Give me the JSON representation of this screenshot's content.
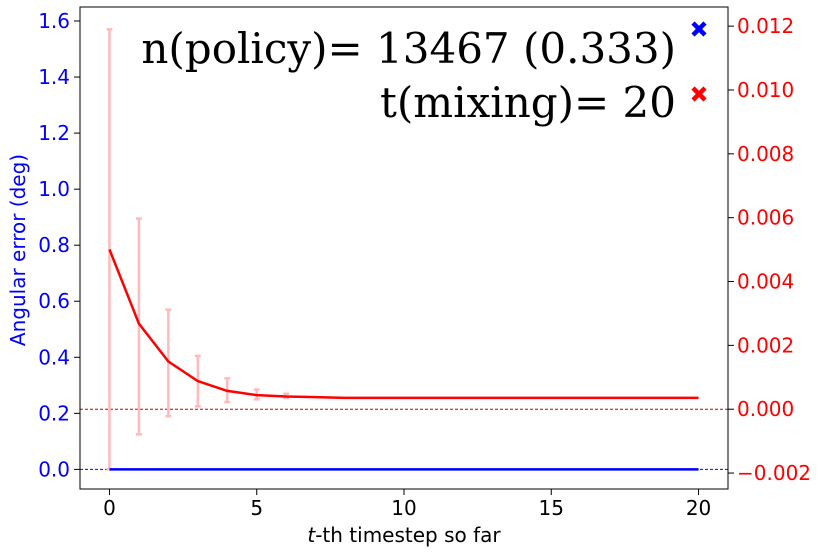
{
  "chart_data": {
    "type": "line",
    "xlabel": {
      "italic": "t",
      "rest": "-th timestep so far"
    },
    "ylabel_left": "Angular error (deg)",
    "xlim": [
      -1,
      21
    ],
    "ylim_left": [
      -0.07,
      1.65
    ],
    "ylim_right": [
      -0.0025,
      0.0126
    ],
    "x_ticks": [
      0,
      5,
      10,
      15,
      20
    ],
    "y_ticks_left": [
      0.0,
      0.2,
      0.4,
      0.6,
      0.8,
      1.0,
      1.2,
      1.4,
      1.6
    ],
    "y_tick_labels_left": [
      "0.0",
      "0.2",
      "0.4",
      "0.6",
      "0.8",
      "1.0",
      "1.2",
      "1.4",
      "1.6"
    ],
    "y_ticks_right": [
      -0.002,
      0.0,
      0.002,
      0.004,
      0.006,
      0.008,
      0.01,
      0.012
    ],
    "y_tick_labels_right": [
      "−0.002",
      "0.000",
      "0.002",
      "0.004",
      "0.006",
      "0.008",
      "0.010",
      "0.012"
    ],
    "grid": false,
    "colors": {
      "left_axis": "#0000ff",
      "right_axis": "#ff0000",
      "blue_series": "#0000ff",
      "red_series": "#ff0000",
      "error_bars": "#ffbbbb"
    },
    "series": [
      {
        "axis": "left",
        "color": "#0000ff",
        "x": [
          0,
          1,
          2,
          3,
          4,
          5,
          6,
          7,
          8,
          9,
          10,
          11,
          12,
          13,
          14,
          15,
          16,
          17,
          18,
          19,
          20
        ],
        "y": [
          0,
          0,
          0,
          0,
          0,
          0,
          0,
          0,
          0,
          0,
          0,
          0,
          0,
          0,
          0,
          0,
          0,
          0,
          0,
          0,
          0
        ]
      },
      {
        "axis": "left",
        "color": "#ff0000",
        "x": [
          0,
          1,
          2,
          3,
          4,
          5,
          6,
          7,
          8,
          9,
          10,
          11,
          12,
          13,
          14,
          15,
          16,
          17,
          18,
          19,
          20
        ],
        "y": [
          0.785,
          0.52,
          0.385,
          0.315,
          0.28,
          0.265,
          0.26,
          0.258,
          0.255,
          0.255,
          0.255,
          0.255,
          0.255,
          0.255,
          0.255,
          0.255,
          0.255,
          0.255,
          0.255,
          0.255,
          0.255
        ],
        "err_x": [
          0,
          1,
          2,
          3,
          4,
          5,
          6
        ],
        "err_low": [
          0.0,
          0.125,
          0.19,
          0.225,
          0.24,
          0.25,
          0.255
        ],
        "err_high": [
          1.57,
          0.895,
          0.57,
          0.405,
          0.325,
          0.285,
          0.27
        ]
      }
    ],
    "reference_lines": [
      {
        "axis": "left",
        "y": 0.0,
        "color": "#0000ff",
        "style": "dashed"
      },
      {
        "axis": "right",
        "y": 0.0,
        "color": "#cc0000",
        "style": "dashed"
      }
    ],
    "markers": [
      {
        "color": "#0000ff",
        "shape": "x"
      },
      {
        "color": "#ff0000",
        "shape": "x"
      }
    ],
    "annotations": [
      "n(policy)= 13467 (0.333)",
      "t(mixing)= 20"
    ]
  }
}
